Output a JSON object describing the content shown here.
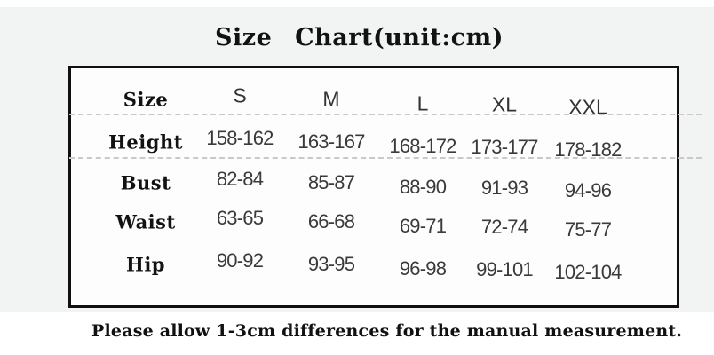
{
  "title": "Size Chart(unit:cm)",
  "footer_note": "Please allow 1-3cm differences for the manual measurement.",
  "colors": {
    "box_border": "#101010",
    "dashed_line": "#c9c9c9",
    "band_background": "#f2f3f3",
    "label_text": "#121212",
    "value_text": "#3a3a3a"
  },
  "chart_data": {
    "type": "table",
    "title": "Size Chart(unit:cm)",
    "unit": "cm",
    "columns": [
      "Size",
      "S",
      "M",
      "L",
      "XL",
      "XXL"
    ],
    "rows": [
      {
        "label": "Height",
        "values": [
          "158-162",
          "163-167",
          "168-172",
          "173-177",
          "178-182"
        ]
      },
      {
        "label": "Bust",
        "values": [
          "82-84",
          "85-87",
          "88-90",
          "91-93",
          "94-96"
        ]
      },
      {
        "label": "Waist",
        "values": [
          "63-65",
          "66-68",
          "69-71",
          "72-74",
          "75-77"
        ]
      },
      {
        "label": "Hip",
        "values": [
          "90-92",
          "93-95",
          "96-98",
          "99-101",
          "102-104"
        ]
      }
    ],
    "note": "Please allow 1-3cm differences for the manual measurement.",
    "layout": {
      "grid": "dashed separators under header and Height rows only",
      "legend": "none"
    }
  }
}
